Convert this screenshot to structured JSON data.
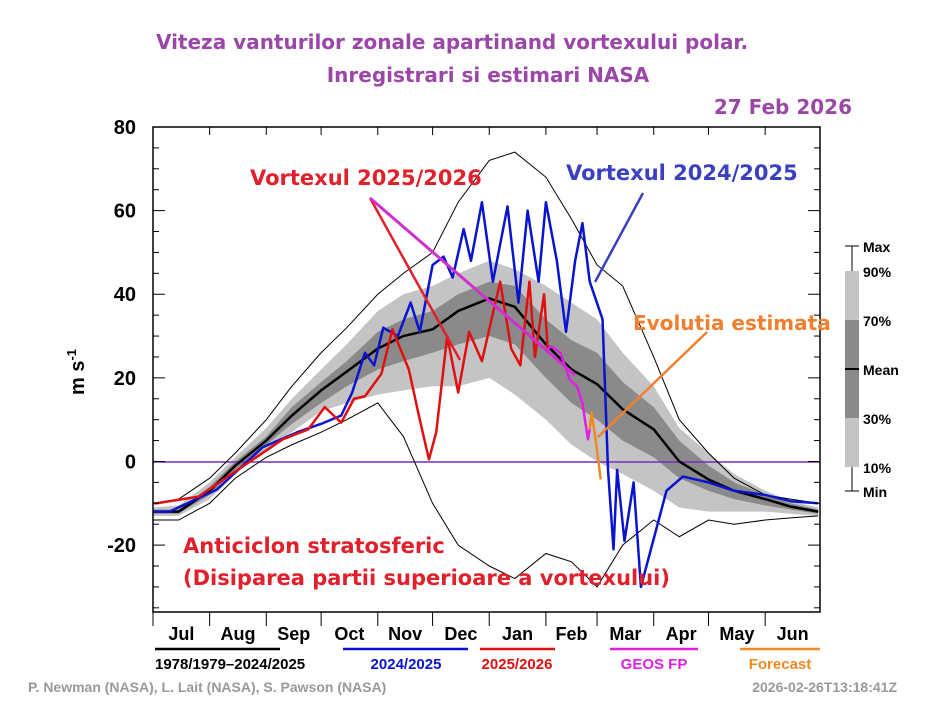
{
  "chart_data": {
    "type": "line",
    "title_line1": "Viteza vanturilor zonale apartinand vortexului polar.",
    "title_line2": "Inregistrari si estimari NASA",
    "date_label": "27 Feb 2026",
    "ylabel": "m s",
    "ylabel_sup": "-1",
    "ylim": [
      -36,
      80
    ],
    "yticks": [
      80,
      60,
      40,
      20,
      0,
      -20
    ],
    "xticks": [
      "Jul",
      "Aug",
      "Sep",
      "Oct",
      "Nov",
      "Dec",
      "Jan",
      "Feb",
      "Mar",
      "Apr",
      "May",
      "Jun"
    ],
    "zero_line_color": "#7a2bb8",
    "climatology": {
      "name": "1978/1979–2024/2025",
      "color": "#000000",
      "dates": [
        "07-01",
        "07-15",
        "08-01",
        "08-15",
        "09-01",
        "09-15",
        "10-01",
        "10-15",
        "11-01",
        "11-15",
        "12-01",
        "12-15",
        "01-01",
        "01-15",
        "02-01",
        "02-15",
        "03-01",
        "03-15",
        "04-01",
        "04-15",
        "05-01",
        "05-15",
        "06-01",
        "06-15",
        "06-30"
      ],
      "mean": [
        -12,
        -12,
        -7,
        -1,
        5,
        11,
        17,
        21.5,
        27,
        30,
        31.6,
        36,
        39,
        37,
        28,
        22,
        18.5,
        12.5,
        7.7,
        0,
        -4.3,
        -7,
        -9,
        -10.8,
        -12
      ],
      "p90": [
        -11,
        -10.5,
        -5,
        1,
        8,
        15,
        22,
        28,
        36,
        40,
        42,
        45,
        48,
        46,
        42,
        38,
        34,
        26,
        18,
        8,
        2,
        -3,
        -7,
        -9.5,
        -11
      ],
      "p70": [
        -11.5,
        -11.5,
        -6,
        0,
        6,
        13,
        19,
        24,
        31,
        34,
        36,
        40,
        43,
        42,
        34,
        29,
        26,
        19,
        13,
        5,
        -1,
        -5,
        -8,
        -10,
        -11.5
      ],
      "p30": [
        -12.5,
        -12.5,
        -8,
        -2,
        4,
        9,
        14,
        18,
        22,
        24,
        26,
        28,
        30,
        28,
        20,
        14,
        10,
        5,
        1,
        -4,
        -7,
        -9,
        -10.5,
        -11.5,
        -12.5
      ],
      "p10": [
        -13,
        -13,
        -9,
        -3,
        3,
        7,
        12,
        14,
        16,
        17,
        18,
        18,
        20,
        16,
        10,
        4,
        0,
        -3,
        -7,
        -11,
        -12,
        -12,
        -12,
        -12.5,
        -13
      ],
      "max": [
        -10,
        -9,
        -4,
        2,
        10,
        18,
        26,
        32,
        40,
        45,
        50,
        62,
        72,
        74,
        68,
        58,
        47,
        42,
        25,
        10,
        2,
        -4,
        -8,
        -9,
        -10
      ],
      "min": [
        -14,
        -14,
        -10,
        -4,
        1,
        4,
        7,
        10,
        14,
        6,
        -10,
        -20,
        -25,
        -28,
        -22,
        -24,
        -30,
        -20,
        -14,
        -18,
        -14,
        -15,
        -14,
        -13.5,
        -13
      ],
      "band_colors": {
        "outer": "#c4c4c4",
        "inner": "#8a8a8a"
      }
    },
    "series": [
      {
        "name": "2024/2025",
        "color": "#0a14d0",
        "points": [
          [
            "2024-07-01",
            -12
          ],
          [
            "2024-07-10",
            -12
          ],
          [
            "2024-08-05",
            -6.7
          ],
          [
            "2024-08-30",
            3.4
          ],
          [
            "2024-09-18",
            7
          ],
          [
            "2024-10-01",
            9
          ],
          [
            "2024-10-12",
            11
          ],
          [
            "2024-10-18",
            16.5
          ],
          [
            "2024-10-25",
            26
          ],
          [
            "2024-10-30",
            23
          ],
          [
            "2024-11-04",
            32
          ],
          [
            "2024-11-12",
            30
          ],
          [
            "2024-11-19",
            38
          ],
          [
            "2024-11-24",
            31
          ],
          [
            "2024-12-01",
            47
          ],
          [
            "2024-12-07",
            49
          ],
          [
            "2024-12-12",
            44
          ],
          [
            "2024-12-18",
            55.6
          ],
          [
            "2024-12-22",
            48
          ],
          [
            "2024-12-28",
            62
          ],
          [
            "2025-01-03",
            43
          ],
          [
            "2025-01-11",
            61
          ],
          [
            "2025-01-17",
            38
          ],
          [
            "2025-01-22",
            60
          ],
          [
            "2025-01-28",
            43
          ],
          [
            "2025-02-01",
            62
          ],
          [
            "2025-02-07",
            48
          ],
          [
            "2025-02-12",
            31
          ],
          [
            "2025-02-17",
            48
          ],
          [
            "2025-02-21",
            57
          ],
          [
            "2025-02-25",
            43
          ],
          [
            "2025-03-04",
            34
          ],
          [
            "2025-03-07",
            -2
          ],
          [
            "2025-03-10",
            -21
          ],
          [
            "2025-03-12",
            -2
          ],
          [
            "2025-03-16",
            -19
          ],
          [
            "2025-03-21",
            -5
          ],
          [
            "2025-03-25",
            -30
          ],
          [
            "2025-04-08",
            -7
          ],
          [
            "2025-04-17",
            -3.6
          ],
          [
            "2025-05-01",
            -5
          ],
          [
            "2025-05-15",
            -7
          ],
          [
            "2025-06-01",
            -8
          ],
          [
            "2025-06-15",
            -9.5
          ],
          [
            "2025-06-30",
            -10
          ]
        ]
      },
      {
        "name": "2025/2026",
        "color": "#e01010",
        "points": [
          [
            "2025-07-01",
            -10
          ],
          [
            "2025-07-03",
            -10
          ],
          [
            "2025-07-26",
            -8.4
          ],
          [
            "2025-08-14",
            -2.7
          ],
          [
            "2025-09-10",
            5.3
          ],
          [
            "2025-09-24",
            7.7
          ],
          [
            "2025-10-03",
            13
          ],
          [
            "2025-10-12",
            9.3
          ],
          [
            "2025-10-19",
            15
          ],
          [
            "2025-10-25",
            15.6
          ],
          [
            "2025-11-03",
            21
          ],
          [
            "2025-11-09",
            31.6
          ],
          [
            "2025-11-18",
            22
          ],
          [
            "2025-11-24",
            10
          ],
          [
            "2025-11-29",
            0.5
          ],
          [
            "2025-12-03",
            7
          ],
          [
            "2025-12-09",
            30
          ],
          [
            "2025-12-15",
            16.5
          ],
          [
            "2025-12-21",
            31
          ],
          [
            "2025-12-28",
            24
          ],
          [
            "2026-01-07",
            43
          ],
          [
            "2026-01-13",
            27
          ],
          [
            "2026-01-18",
            23
          ],
          [
            "2026-01-23",
            43
          ],
          [
            "2026-01-26",
            25
          ],
          [
            "2026-01-31",
            40
          ],
          [
            "2026-02-02",
            27
          ]
        ]
      },
      {
        "name": "GEOS FP",
        "color": "#e020e0",
        "points": [
          [
            "2026-02-02",
            27
          ],
          [
            "2026-02-04",
            27.5
          ],
          [
            "2026-02-09",
            26
          ],
          [
            "2026-02-14",
            19.6
          ],
          [
            "2026-02-18",
            18
          ],
          [
            "2026-02-21",
            14
          ],
          [
            "2026-02-24",
            5.3
          ],
          [
            "2026-02-25",
            7.7
          ]
        ]
      },
      {
        "name": "Forecast",
        "color": "#f08a20",
        "points": [
          [
            "2026-02-25",
            7.7
          ],
          [
            "2026-02-26",
            11.7
          ],
          [
            "2026-02-28",
            6
          ],
          [
            "2026-03-03",
            -4.3
          ]
        ]
      }
    ],
    "band_legend": [
      "Max",
      "90%",
      "70%",
      "Mean",
      "30%",
      "10%",
      "Min"
    ],
    "annotations": {
      "vortex_2025": {
        "text": "Vortexul 2025/2026",
        "color": "#e0202a"
      },
      "vortex_2024": {
        "text": "Vortexul 2024/2025",
        "color": "#3b40c0"
      },
      "forecast": {
        "text": "Evolutia estimata",
        "color": "#f08030"
      },
      "anticyclone_1": {
        "text": "Anticiclon stratosferic",
        "color": "#e0202a"
      },
      "anticyclone_2": {
        "text": "(Disiparea partii superioare a vortexului)",
        "color": "#e0202a"
      }
    },
    "title_color": "#9b47a8"
  },
  "credits": {
    "authors": "P. Newman (NASA), L. Lait (NASA), S. Pawson (NASA)",
    "timestamp": "2026-02-26T13:18:41Z"
  }
}
